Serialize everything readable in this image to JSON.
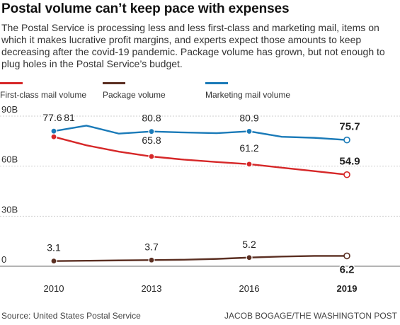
{
  "header": {
    "title": "Postal volume can’t keep pace with expenses",
    "subtitle": "The Postal Service is processing less and less first-class and marketing mail, items on which it makes lucrative profit margins, and experts expect those amounts to keep decreasing after the covid-19 pandemic. Package volume has grown, but not enough to plug holes in the Postal Service’s budget."
  },
  "footer": {
    "source": "Source: United States Postal Service",
    "credit": "JACOB BOGAGE/THE WASHINGTON POST"
  },
  "chart_data": {
    "type": "line",
    "x": [
      2010,
      2011,
      2012,
      2013,
      2014,
      2015,
      2016,
      2017,
      2018,
      2019
    ],
    "x_ticks": [
      "2010",
      "2013",
      "2016",
      "2019"
    ],
    "y_ticks": [
      "90B",
      "60B",
      "30B",
      "0"
    ],
    "y_tick_values": [
      90,
      60,
      30,
      0
    ],
    "ylim": [
      0,
      90
    ],
    "xlim": [
      2010,
      2019
    ],
    "grid": true,
    "legend": "top-left",
    "series": [
      {
        "name": "First-class mail volume",
        "color": "#d62728",
        "values": [
          77.6,
          72.5,
          68.7,
          65.8,
          63.9,
          62.5,
          61.2,
          59.1,
          57.0,
          54.9
        ],
        "labels": [
          {
            "x": 2010,
            "text": "77.6"
          },
          {
            "x": 2013,
            "text": "65.8"
          },
          {
            "x": 2016,
            "text": "61.2"
          },
          {
            "x": 2019,
            "text": "54.9"
          }
        ]
      },
      {
        "name": "Package volume",
        "color": "#5b2f22",
        "values": [
          3.1,
          3.3,
          3.5,
          3.7,
          3.9,
          4.4,
          5.2,
          5.8,
          6.2,
          6.2
        ],
        "labels": [
          {
            "x": 2010,
            "text": "3.1"
          },
          {
            "x": 2013,
            "text": "3.7"
          },
          {
            "x": 2016,
            "text": "5.2"
          },
          {
            "x": 2019,
            "text": "6.2"
          }
        ]
      },
      {
        "name": "Marketing mail volume",
        "color": "#1a7ab8",
        "values": [
          81.0,
          84.3,
          79.5,
          80.8,
          80.2,
          79.8,
          80.9,
          77.6,
          77.0,
          75.7
        ],
        "labels": [
          {
            "x": 2010,
            "text": "81"
          },
          {
            "x": 2013,
            "text": "80.8"
          },
          {
            "x": 2016,
            "text": "80.9"
          },
          {
            "x": 2019,
            "text": "75.7"
          }
        ]
      }
    ]
  }
}
